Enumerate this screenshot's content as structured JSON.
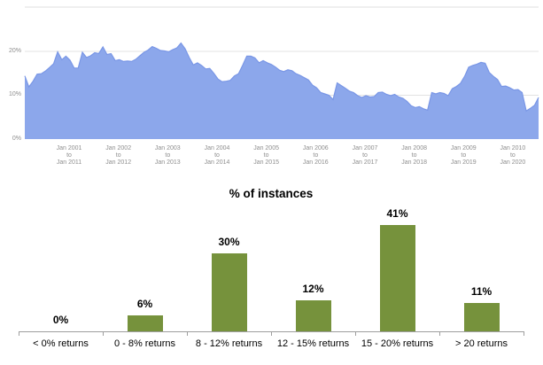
{
  "colors": {
    "area_fill": "#8CA7EB",
    "area_line": "#7A97E6",
    "grid_line": "#E3E3E3",
    "chart_top_border": "#DFDFDF",
    "axis_text_gray": "#8E8E8E",
    "bar_fill": "#76923C",
    "bar_axis": "#9E9E9E",
    "label_black": "#000000"
  },
  "chart_data": [
    {
      "type": "area",
      "title": "",
      "ylabel": "",
      "xlabel": "",
      "unit": "%",
      "ylim": [
        0,
        30
      ],
      "grid": "horizontal",
      "y_ticks": [
        "20%",
        "10%",
        "0%"
      ],
      "gridline_values": [
        20,
        10
      ],
      "x_tick_labels": [
        [
          "Jan 2001",
          "to",
          "Jan 2011"
        ],
        [
          "Jan 2002",
          "to",
          "Jan 2012"
        ],
        [
          "Jan 2003",
          "to",
          "Jan 2013"
        ],
        [
          "Jan 2004",
          "to",
          "Jan 2014"
        ],
        [
          "Jan 2005",
          "to",
          "Jan 2015"
        ],
        [
          "Jan 2006",
          "to",
          "Jan 2016"
        ],
        [
          "Jan 2007",
          "to",
          "Jan 2017"
        ],
        [
          "Jan 2008",
          "to",
          "Jan 2018"
        ],
        [
          "Jan 2009",
          "to",
          "Jan 2019"
        ],
        [
          "Jan 2010",
          "to",
          "Jan 2020"
        ]
      ],
      "values": [
        14.4,
        11.9,
        13.2,
        14.8,
        14.9,
        15.5,
        16.3,
        17.2,
        19.9,
        18.1,
        18.9,
        18.0,
        16.2,
        16.2,
        19.8,
        18.6,
        19.0,
        19.7,
        19.5,
        21.0,
        19.3,
        19.5,
        17.9,
        18.1,
        17.7,
        17.8,
        17.7,
        18.2,
        19.0,
        19.8,
        20.3,
        21.1,
        20.7,
        20.2,
        20.1,
        19.9,
        20.4,
        20.8,
        21.9,
        20.6,
        18.6,
        16.9,
        17.4,
        16.8,
        16.0,
        16.1,
        15.0,
        13.7,
        13.1,
        13.2,
        13.4,
        14.4,
        14.9,
        16.8,
        18.9,
        18.9,
        18.5,
        17.4,
        17.9,
        17.4,
        17.0,
        16.4,
        15.7,
        15.4,
        15.8,
        15.6,
        14.9,
        14.5,
        14.0,
        13.5,
        12.3,
        11.7,
        10.6,
        10.3,
        10.0,
        9.0,
        12.8,
        12.2,
        11.6,
        10.9,
        10.6,
        9.9,
        9.5,
        9.9,
        9.6,
        9.7,
        10.6,
        10.7,
        10.2,
        9.9,
        10.2,
        9.6,
        9.3,
        8.6,
        7.6,
        7.2,
        7.4,
        6.9,
        6.6,
        10.6,
        10.3,
        10.6,
        10.4,
        9.9,
        11.5,
        12.0,
        12.7,
        14.3,
        16.4,
        16.8,
        17.1,
        17.5,
        17.3,
        15.2,
        14.3,
        13.6,
        12.0,
        12.1,
        11.7,
        11.2,
        11.3,
        10.6,
        6.4,
        7.0,
        7.7,
        9.5
      ]
    },
    {
      "type": "bar",
      "title": "% of instances",
      "categories": [
        "< 0% returns",
        "0 - 8% returns",
        "8 - 12% returns",
        "12 - 15% returns",
        "15 - 20% returns",
        "> 20 returns"
      ],
      "values": [
        0,
        6,
        30,
        12,
        41,
        11
      ],
      "value_labels": [
        "0%",
        "6%",
        "30%",
        "12%",
        "41%",
        "11%"
      ],
      "ylim": [
        0,
        45
      ],
      "grid": "off",
      "legend": "none"
    }
  ]
}
